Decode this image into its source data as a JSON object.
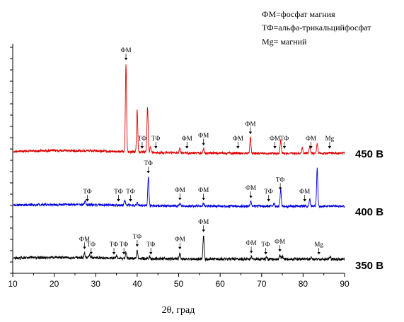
{
  "chart_data": {
    "type": "line",
    "xlabel": "2θ, град",
    "ylabel": "",
    "xlim": [
      10,
      90
    ],
    "x_ticks": [
      10,
      20,
      30,
      40,
      50,
      60,
      70,
      80,
      90
    ],
    "legend_notes": [
      "ФМ=фосфат магния",
      "ТФ=альфа-трикальцийфосфат",
      "Mg= магний"
    ],
    "series": [
      {
        "name": "450 В",
        "color": "#e00000",
        "peaks": [
          [
            37.3,
            1.0
          ],
          [
            40.0,
            0.48
          ],
          [
            42.5,
            0.52
          ],
          [
            43.2,
            0.06
          ],
          [
            50.3,
            0.06
          ],
          [
            56.0,
            0.05
          ],
          [
            67.3,
            0.18
          ],
          [
            74.6,
            0.15
          ],
          [
            79.8,
            0.07
          ],
          [
            81.6,
            0.08
          ],
          [
            83.4,
            0.11
          ]
        ],
        "annotations": [
          {
            "text": "ФМ",
            "x": 37.3
          },
          {
            "text": "ТФ",
            "x": 41.2
          },
          {
            "text": "ТФ",
            "x": 44.5
          },
          {
            "text": "ФМ",
            "x": 52.0
          },
          {
            "text": "ФМ",
            "x": 56.0
          },
          {
            "text": "ФМ",
            "x": 64.3
          },
          {
            "text": "ФМ",
            "x": 67.3
          },
          {
            "text": "ФМ",
            "x": 73.2
          },
          {
            "text": "ТФ",
            "x": 75.5
          },
          {
            "text": "ФМ",
            "x": 81.9
          },
          {
            "text": "Mg",
            "x": 86.4
          }
        ]
      },
      {
        "name": "400 В",
        "color": "#0000e0",
        "peaks": [
          [
            27.5,
            0.07
          ],
          [
            37.0,
            0.1
          ],
          [
            40.0,
            0.05
          ],
          [
            42.7,
            0.55
          ],
          [
            50.3,
            0.05
          ],
          [
            56.0,
            0.05
          ],
          [
            67.4,
            0.09
          ],
          [
            73.0,
            0.06
          ],
          [
            74.6,
            0.32
          ],
          [
            81.6,
            0.13
          ],
          [
            83.4,
            0.72
          ]
        ],
        "annotations": [
          {
            "text": "ТФ",
            "x": 28.0
          },
          {
            "text": "ТФ",
            "x": 35.5
          },
          {
            "text": "ТФ",
            "x": 38.4
          },
          {
            "text": "ТФ",
            "x": 42.7
          },
          {
            "text": "ФМ",
            "x": 50.3
          },
          {
            "text": "ФМ",
            "x": 56.0
          },
          {
            "text": "ФМ",
            "x": 67.4
          },
          {
            "text": "ТФ",
            "x": 71.7
          },
          {
            "text": "ТФ",
            "x": 74.5
          },
          {
            "text": "ФМ",
            "x": 80.4
          }
        ]
      },
      {
        "name": "350 В",
        "color": "#000000",
        "peaks": [
          [
            27.3,
            0.1
          ],
          [
            28.5,
            0.06
          ],
          [
            35.0,
            0.05
          ],
          [
            37.3,
            0.12
          ],
          [
            40.0,
            0.16
          ],
          [
            43.0,
            0.05
          ],
          [
            50.3,
            0.12
          ],
          [
            56.0,
            0.45
          ],
          [
            67.5,
            0.05
          ],
          [
            71.2,
            0.04
          ],
          [
            74.4,
            0.08
          ],
          [
            75.0,
            0.06
          ],
          [
            82.0,
            0.04
          ],
          [
            86.5,
            0.05
          ]
        ],
        "annotations": [
          {
            "text": "ФМ",
            "x": 27.3
          },
          {
            "text": "ТФ",
            "x": 28.9
          },
          {
            "text": "ТФ",
            "x": 34.4
          },
          {
            "text": "ТФ",
            "x": 36.8
          },
          {
            "text": "ТФ",
            "x": 40.0
          },
          {
            "text": "ТФ",
            "x": 43.3
          },
          {
            "text": "ФМ",
            "x": 50.3
          },
          {
            "text": "ФМ",
            "x": 56.0
          },
          {
            "text": "ФМ",
            "x": 67.5
          },
          {
            "text": "ТФ",
            "x": 71.0
          },
          {
            "text": "ФМ",
            "x": 74.4
          },
          {
            "text": "Mg",
            "x": 83.8
          }
        ]
      }
    ]
  }
}
